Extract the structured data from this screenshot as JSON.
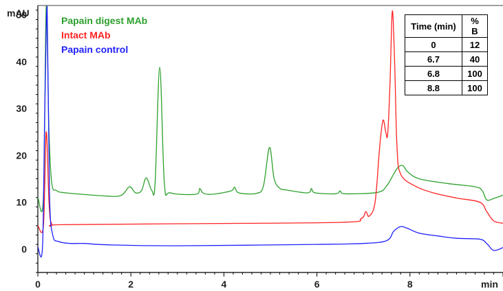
{
  "chart_data": {
    "type": "line",
    "title": "",
    "xlabel": "min",
    "ylabel": "mAU",
    "xlim": [
      0,
      10
    ],
    "ylim": [
      -5,
      52
    ],
    "x_ticks": [
      0,
      2,
      4,
      6,
      8
    ],
    "y_ticks": [
      0,
      10,
      20,
      30,
      40,
      50
    ],
    "grid": false,
    "legend_position": "top-left",
    "series": [
      {
        "name": "Papain digest MAb",
        "color": "#2ca02c",
        "baseline": 11,
        "points": [
          [
            0,
            11
          ],
          [
            0.12,
            11
          ],
          [
            0.18,
            60
          ],
          [
            0.24,
            25
          ],
          [
            0.3,
            14
          ],
          [
            0.4,
            12.5
          ],
          [
            0.6,
            12
          ],
          [
            1.5,
            11.3
          ],
          [
            1.8,
            11.5
          ],
          [
            1.97,
            13.3
          ],
          [
            2.1,
            12
          ],
          [
            2.23,
            12.5
          ],
          [
            2.33,
            15.2
          ],
          [
            2.45,
            12.5
          ],
          [
            2.52,
            14
          ],
          [
            2.62,
            38.8
          ],
          [
            2.72,
            14
          ],
          [
            2.85,
            12
          ],
          [
            3.4,
            11.7
          ],
          [
            3.48,
            12.9
          ],
          [
            3.56,
            11.9
          ],
          [
            3.75,
            11.7
          ],
          [
            4.15,
            12.4
          ],
          [
            4.23,
            13.2
          ],
          [
            4.32,
            12
          ],
          [
            4.7,
            11.9
          ],
          [
            4.85,
            13.5
          ],
          [
            4.98,
            21.7
          ],
          [
            5.08,
            15
          ],
          [
            5.2,
            13
          ],
          [
            5.35,
            12.6
          ],
          [
            5.8,
            12
          ],
          [
            5.88,
            12.9
          ],
          [
            5.96,
            12
          ],
          [
            6.4,
            11.8
          ],
          [
            6.5,
            12.4
          ],
          [
            6.6,
            11.8
          ],
          [
            7.3,
            12.1
          ],
          [
            7.5,
            13.5
          ],
          [
            7.65,
            16
          ],
          [
            7.75,
            17.5
          ],
          [
            7.85,
            17.8
          ],
          [
            7.95,
            16.5
          ],
          [
            8.2,
            15
          ],
          [
            8.8,
            14
          ],
          [
            9.4,
            13.3
          ],
          [
            9.55,
            12.5
          ],
          [
            9.65,
            10.5
          ],
          [
            9.8,
            10.8
          ],
          [
            10,
            11.5
          ]
        ]
      },
      {
        "name": "Intact MAb",
        "color": "#ff2222",
        "baseline": 5,
        "points": [
          [
            0,
            5
          ],
          [
            0.12,
            5
          ],
          [
            0.18,
            25
          ],
          [
            0.24,
            10
          ],
          [
            0.3,
            5.3
          ],
          [
            0.5,
            5.2
          ],
          [
            3,
            5.4
          ],
          [
            6.5,
            5.7
          ],
          [
            6.95,
            6.5
          ],
          [
            7.05,
            8
          ],
          [
            7.12,
            7
          ],
          [
            7.25,
            10
          ],
          [
            7.35,
            22
          ],
          [
            7.42,
            27.5
          ],
          [
            7.48,
            25
          ],
          [
            7.52,
            24.5
          ],
          [
            7.57,
            35
          ],
          [
            7.62,
            50.8
          ],
          [
            7.67,
            40
          ],
          [
            7.72,
            22
          ],
          [
            7.8,
            16
          ],
          [
            8.1,
            13.5
          ],
          [
            8.5,
            12
          ],
          [
            9.0,
            10.9
          ],
          [
            9.5,
            10
          ],
          [
            9.65,
            8
          ],
          [
            9.8,
            6
          ],
          [
            10,
            5.5
          ]
        ]
      },
      {
        "name": "Papain control",
        "color": "#1f1fff",
        "baseline": 0.5,
        "points": [
          [
            0,
            0.5
          ],
          [
            0.1,
            0.5
          ],
          [
            0.15,
            30
          ],
          [
            0.2,
            60
          ],
          [
            0.25,
            12
          ],
          [
            0.32,
            3
          ],
          [
            0.45,
            1.6
          ],
          [
            0.7,
            1.2
          ],
          [
            1.0,
            1.2
          ],
          [
            1.5,
            0.9
          ],
          [
            3,
            0.7
          ],
          [
            6,
            1
          ],
          [
            7.0,
            1.2
          ],
          [
            7.5,
            1.8
          ],
          [
            7.65,
            3.8
          ],
          [
            7.8,
            4.8
          ],
          [
            7.95,
            4.4
          ],
          [
            8.2,
            3.4
          ],
          [
            8.6,
            2.8
          ],
          [
            9.0,
            2.3
          ],
          [
            9.5,
            2.1
          ],
          [
            9.65,
            1.2
          ],
          [
            9.8,
            -0.3
          ],
          [
            10,
            0.3
          ]
        ]
      }
    ]
  },
  "legend": [
    {
      "label": "Papain digest MAb",
      "color": "#2ca02c"
    },
    {
      "label": "Intact MAb",
      "color": "#ff2222"
    },
    {
      "label": "Papain control",
      "color": "#1f1fff"
    }
  ],
  "gradient_table": {
    "headers": [
      "Time (min)",
      "% B"
    ],
    "rows": [
      {
        "time": "0",
        "pb": "12"
      },
      {
        "time": "6.7",
        "pb": "40"
      },
      {
        "time": "6.8",
        "pb": "100"
      },
      {
        "time": "8.8",
        "pb": "100"
      }
    ]
  }
}
